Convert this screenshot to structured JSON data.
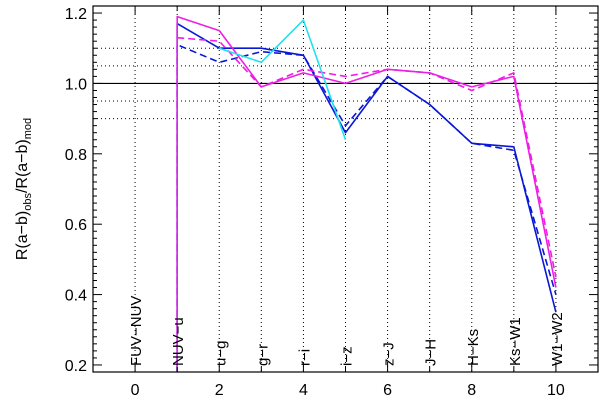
{
  "chart_data": {
    "type": "line",
    "title": "",
    "xlabel": "",
    "ylabel": "R(a−b)obs/R(a−b)mod",
    "xlim": [
      -1,
      11
    ],
    "ylim": [
      0.18,
      1.22
    ],
    "xticks": [
      0,
      2,
      4,
      6,
      8,
      10
    ],
    "yticks": [
      0.2,
      0.4,
      0.6,
      0.8,
      1.0,
      1.2
    ],
    "xtick_labels": [
      "0",
      "2",
      "4",
      "6",
      "8",
      "10"
    ],
    "ytick_labels": [
      "0.2",
      "0.4",
      "0.6",
      "0.8",
      "1.0",
      "1.2"
    ],
    "grid": {
      "vertical_dotted_x": [
        0,
        1,
        2,
        3,
        4,
        5,
        6,
        7,
        8,
        9,
        10
      ],
      "horizontal_solid_y": [
        1.0
      ],
      "horizontal_dotted_y": [
        0.9,
        0.95,
        1.05,
        1.1
      ]
    },
    "color_labels": [
      {
        "x": 0,
        "label": "FUV−NUV"
      },
      {
        "x": 1,
        "label": "NUV−u"
      },
      {
        "x": 2,
        "label": "u−g"
      },
      {
        "x": 3,
        "label": "g−r"
      },
      {
        "x": 4,
        "label": "r−i"
      },
      {
        "x": 5,
        "label": "i−z"
      },
      {
        "x": 6,
        "label": "z−J"
      },
      {
        "x": 7,
        "label": "J−H"
      },
      {
        "x": 8,
        "label": "H−Ks"
      },
      {
        "x": 9,
        "label": "Ks−W1"
      },
      {
        "x": 10,
        "label": "W1−W2"
      }
    ],
    "series": [
      {
        "color": "#0a18d6",
        "style": "solid",
        "x": [
          1,
          1,
          2,
          3,
          4,
          5,
          6,
          7,
          8,
          9,
          10
        ],
        "values": [
          0.18,
          1.17,
          1.1,
          1.1,
          1.08,
          0.86,
          1.02,
          0.94,
          0.83,
          0.82,
          0.35
        ]
      },
      {
        "color": "#0a18d6",
        "style": "dashed",
        "x": [
          1,
          1,
          2,
          3,
          4,
          5,
          6,
          7,
          8,
          9,
          10
        ],
        "values": [
          0.18,
          1.11,
          1.06,
          1.09,
          1.08,
          0.88,
          1.02,
          0.94,
          0.83,
          0.81,
          0.4
        ]
      },
      {
        "color": "#ee1ee6",
        "style": "solid",
        "x": [
          1,
          1,
          2,
          3,
          4,
          5,
          6,
          7,
          8,
          9,
          10
        ],
        "values": [
          0.18,
          1.19,
          1.15,
          0.99,
          1.03,
          1.0,
          1.04,
          1.03,
          0.99,
          1.02,
          0.42
        ]
      },
      {
        "color": "#ee1ee6",
        "style": "dashed",
        "x": [
          1,
          2,
          3,
          4,
          5,
          6,
          7,
          8,
          9,
          10
        ],
        "values": [
          1.13,
          1.12,
          0.99,
          1.04,
          1.02,
          1.04,
          1.03,
          0.98,
          1.03,
          0.45
        ]
      },
      {
        "color": "#1fe2ea",
        "style": "solid",
        "x": [
          2,
          3,
          4,
          5
        ],
        "values": [
          1.1,
          1.06,
          1.18,
          0.84
        ]
      }
    ]
  }
}
